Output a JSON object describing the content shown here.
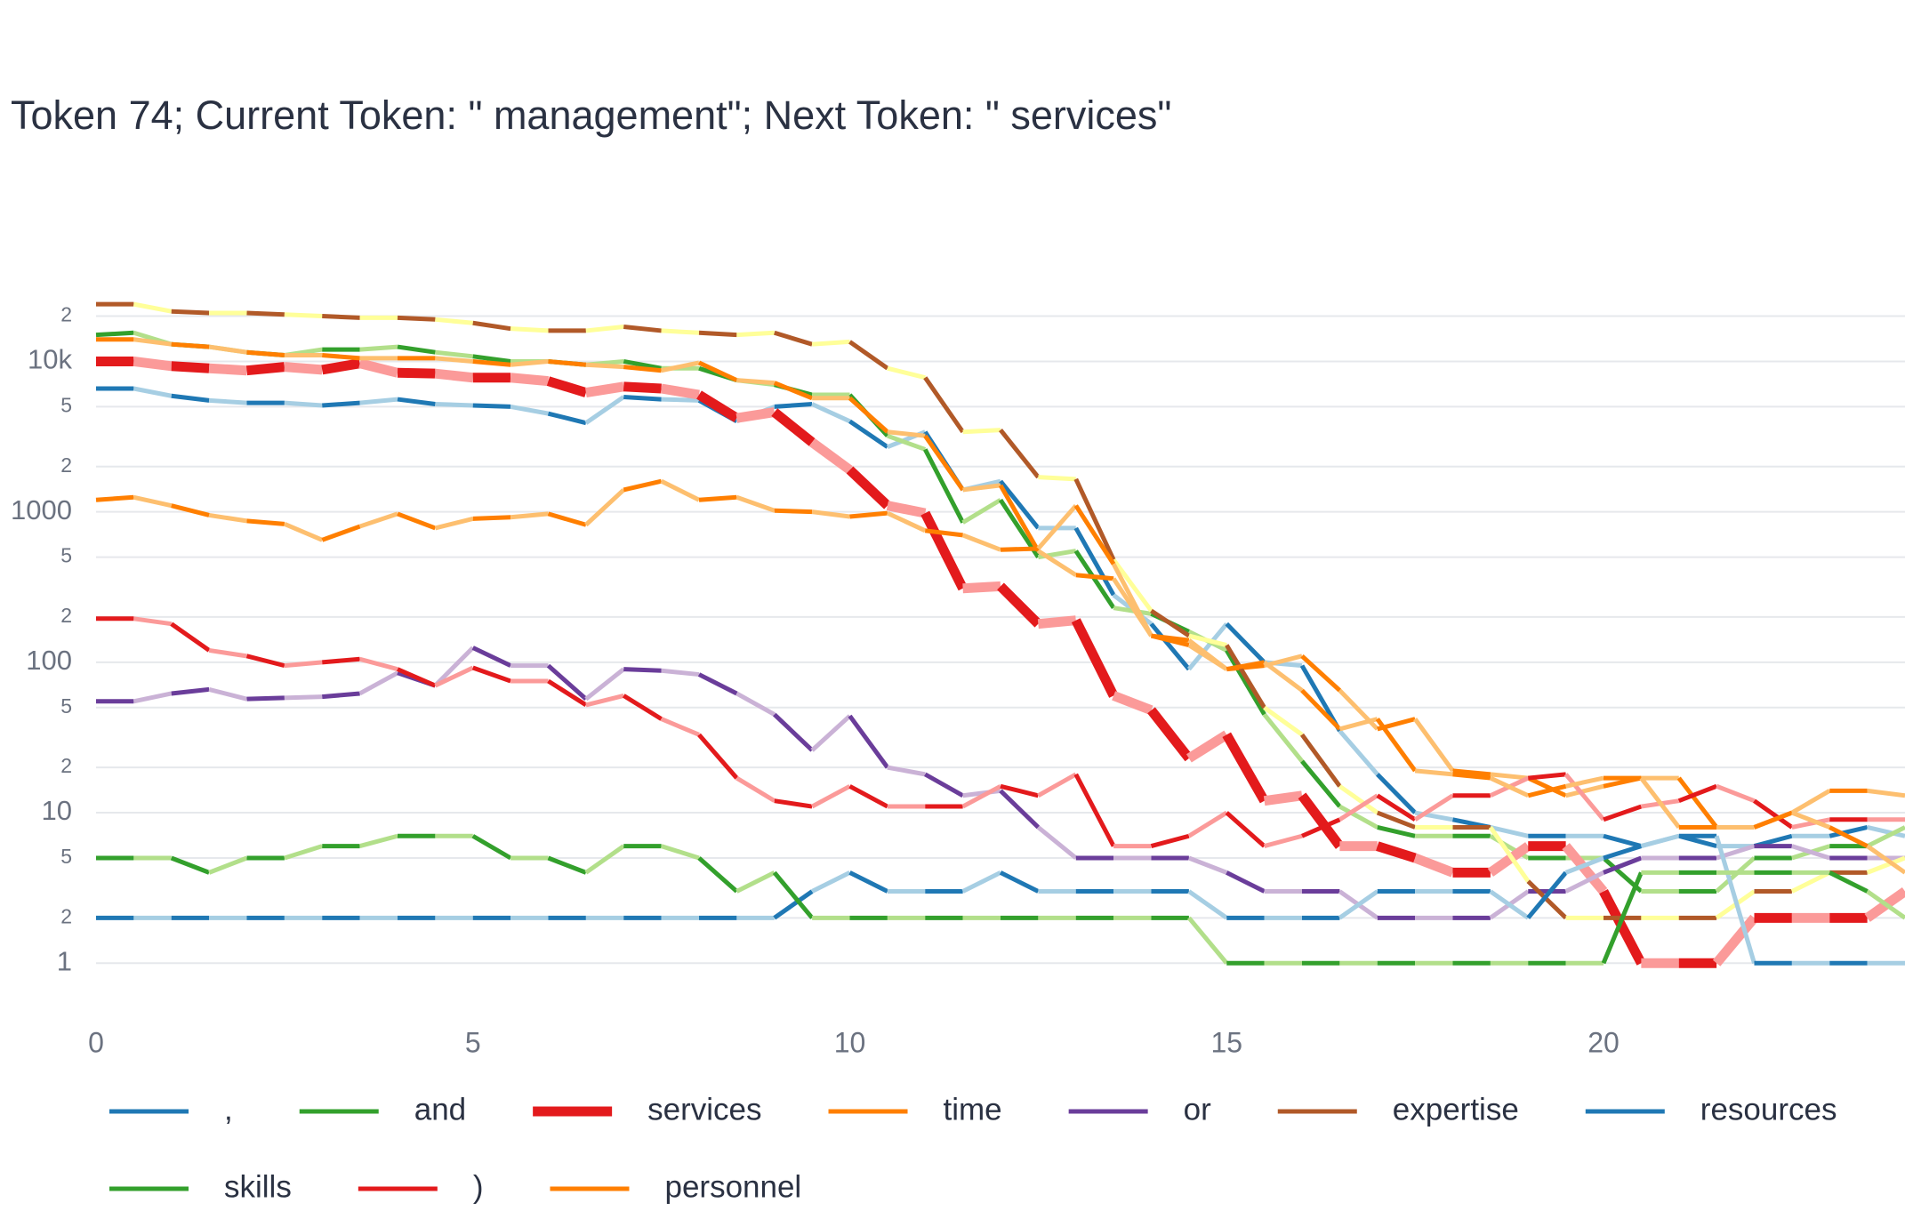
{
  "chart_data": {
    "type": "line",
    "title": "Token 74; Current Token: \" management\"; Next Token: \" services\"",
    "log_y": true,
    "grid": true,
    "legend": "bottom",
    "xlim": [
      0,
      24
    ],
    "xticks": [
      0,
      5,
      10,
      15,
      20
    ],
    "ylim": [
      0.42,
      32000
    ],
    "yticks": [
      1,
      2,
      5,
      10,
      {
        "value": 20,
        "label": "2"
      },
      {
        "value": 50,
        "label": "5"
      },
      100,
      {
        "value": 200,
        "label": "2"
      },
      {
        "value": 500,
        "label": "5"
      },
      1000,
      {
        "value": 2000,
        "label": "2"
      },
      {
        "value": 5000,
        "label": "5"
      },
      {
        "value": 10000,
        "label": "10k"
      },
      {
        "value": 20000,
        "label": "2"
      }
    ],
    "x": [
      0,
      0.5,
      1,
      1.5,
      2,
      2.5,
      3,
      3.5,
      4,
      4.5,
      5,
      5.5,
      6,
      6.5,
      7,
      7.5,
      8,
      8.5,
      9,
      9.5,
      10,
      10.5,
      11,
      11.5,
      12,
      12.5,
      13,
      13.5,
      14,
      14.5,
      15,
      15.5,
      16,
      16.5,
      17,
      17.5,
      18,
      18.5,
      19,
      19.5,
      20,
      20.5,
      21,
      21.5,
      22,
      22.5,
      23,
      23.5,
      24
    ],
    "series": [
      {
        "name": ",",
        "color": "#1f78b4",
        "color_alt": "#a6cee3",
        "values": [
          6600,
          6600,
          5900,
          5500,
          5300,
          5300,
          5100,
          5300,
          5600,
          5200,
          5100,
          5000,
          4500,
          3900,
          5800,
          5600,
          5500,
          4000,
          5000,
          5200,
          4000,
          2700,
          3400,
          1400,
          1600,
          780,
          780,
          280,
          180,
          90,
          180,
          100,
          95,
          35,
          18,
          10,
          9,
          8,
          7,
          7,
          7,
          6,
          7,
          6,
          6,
          7,
          7,
          8,
          7
        ]
      },
      {
        "name": "and",
        "color": "#33a02c",
        "color_alt": "#b2df8a",
        "values": [
          15000,
          15500,
          13000,
          12500,
          11500,
          11000,
          12000,
          12000,
          12500,
          11500,
          10800,
          10000,
          10000,
          9500,
          10000,
          9000,
          9000,
          7500,
          7000,
          6000,
          6000,
          3200,
          2600,
          850,
          1200,
          500,
          550,
          230,
          210,
          160,
          120,
          45,
          22,
          11,
          8,
          7,
          7,
          7,
          5,
          5,
          5,
          3,
          3,
          3,
          5,
          5,
          6,
          6,
          8
        ]
      },
      {
        "name": "services",
        "color": "#e31a1c",
        "color_alt": "#fb9a99",
        "emphasis": true,
        "values": [
          10000,
          10000,
          9300,
          9000,
          8700,
          9200,
          8800,
          9700,
          8400,
          8300,
          7800,
          7800,
          7400,
          6200,
          6800,
          6600,
          6000,
          4200,
          4600,
          2900,
          1900,
          1100,
          980,
          310,
          320,
          180,
          190,
          60,
          48,
          23,
          33,
          12,
          13,
          6,
          6,
          5,
          4,
          4,
          6,
          6,
          3,
          1,
          1,
          1,
          2,
          2,
          2,
          2,
          3
        ]
      },
      {
        "name": "time",
        "color": "#ff7f00",
        "color_alt": "#fdbf6f",
        "values": [
          14000,
          14000,
          13000,
          12500,
          11500,
          11000,
          11000,
          10500,
          10500,
          10500,
          10000,
          9500,
          10000,
          9500,
          9200,
          8700,
          9800,
          7500,
          7200,
          5700,
          5700,
          3400,
          3200,
          1400,
          1500,
          550,
          380,
          360,
          150,
          130,
          90,
          95,
          110,
          65,
          36,
          42,
          19,
          18,
          17,
          13,
          15,
          17,
          17,
          8,
          8,
          10,
          14,
          14,
          13
        ]
      },
      {
        "name": "or",
        "color": "#6a3d9a",
        "color_alt": "#cab2d6",
        "values": [
          55,
          55,
          62,
          66,
          57,
          58,
          59,
          62,
          85,
          70,
          125,
          95,
          95,
          57,
          90,
          88,
          83,
          62,
          45,
          26,
          44,
          20,
          18,
          13,
          14,
          8,
          5,
          5,
          5,
          5,
          4,
          3,
          3,
          3,
          2,
          2,
          2,
          2,
          3,
          3,
          4,
          5,
          5,
          5,
          6,
          6,
          5,
          5,
          5
        ]
      },
      {
        "name": "expertise",
        "color": "#b15928",
        "color_alt": "#ffff99",
        "values": [
          24000,
          24000,
          21500,
          21000,
          21000,
          20500,
          20000,
          19500,
          19500,
          19000,
          18000,
          16500,
          16000,
          16000,
          17000,
          16000,
          15500,
          15000,
          15500,
          13000,
          13500,
          9000,
          7800,
          3400,
          3500,
          1700,
          1650,
          480,
          220,
          150,
          130,
          50,
          33,
          15,
          10,
          8,
          8,
          8,
          3.5,
          2,
          2,
          2,
          2,
          2,
          3,
          3,
          4,
          4,
          5
        ]
      },
      {
        "name": "resources",
        "color": "#1f78b4",
        "color_alt": "#a6cee3",
        "values": [
          2,
          2,
          2,
          2,
          2,
          2,
          2,
          2,
          2,
          2,
          2,
          2,
          2,
          2,
          2,
          2,
          2,
          2,
          2,
          3,
          4,
          3,
          3,
          3,
          4,
          3,
          3,
          3,
          3,
          3,
          2,
          2,
          2,
          2,
          3,
          3,
          3,
          3,
          2,
          4,
          5,
          6,
          7,
          7,
          1,
          1,
          1,
          1,
          1
        ]
      },
      {
        "name": "skills",
        "color": "#33a02c",
        "color_alt": "#b2df8a",
        "values": [
          5,
          5,
          5,
          4,
          5,
          5,
          6,
          6,
          7,
          7,
          7,
          5,
          5,
          4,
          6,
          6,
          5,
          3,
          4,
          2,
          2,
          2,
          2,
          2,
          2,
          2,
          2,
          2,
          2,
          2,
          1,
          1,
          1,
          1,
          1,
          1,
          1,
          1,
          1,
          1,
          1,
          4,
          4,
          4,
          4,
          4,
          4,
          3,
          2
        ]
      },
      {
        "name": ")",
        "color": "#e31a1c",
        "color_alt": "#fb9a99",
        "values": [
          195,
          195,
          180,
          120,
          110,
          95,
          100,
          105,
          90,
          70,
          92,
          75,
          75,
          52,
          60,
          42,
          33,
          17,
          12,
          11,
          15,
          11,
          11,
          11,
          15,
          13,
          18,
          6,
          6,
          7,
          10,
          6,
          7,
          9,
          13,
          9,
          13,
          13,
          17,
          18,
          9,
          11,
          12,
          15,
          12,
          8,
          9,
          9,
          9
        ]
      },
      {
        "name": "personnel",
        "color": "#ff7f00",
        "color_alt": "#fdbf6f",
        "values": [
          1200,
          1250,
          1100,
          950,
          870,
          830,
          650,
          800,
          970,
          780,
          900,
          920,
          970,
          820,
          1400,
          1600,
          1200,
          1250,
          1020,
          1000,
          930,
          980,
          750,
          700,
          560,
          570,
          1100,
          450,
          150,
          140,
          90,
          100,
          65,
          36,
          42,
          19,
          18,
          17,
          13,
          15,
          17,
          17,
          8,
          8,
          8,
          10,
          8,
          6,
          4
        ]
      }
    ]
  }
}
